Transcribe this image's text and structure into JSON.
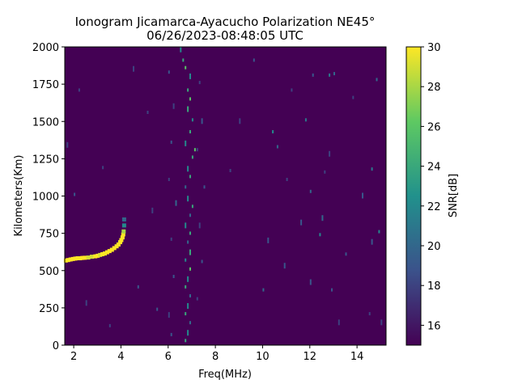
{
  "chart_data": {
    "type": "heatmap",
    "title": "Ionogram Jicamarca-Ayacucho Polarization NE45°",
    "subtitle": "06/26/2023-08:48:05 UTC",
    "xlabel": "Freq(MHz)",
    "ylabel": "Kilometers(Km)",
    "xlim": [
      1.62,
      15.23
    ],
    "ylim": [
      0,
      2000
    ],
    "xticks": [
      2,
      4,
      6,
      8,
      10,
      12,
      14
    ],
    "xtick_labels": [
      "2",
      "4",
      "6",
      "8",
      "10",
      "12",
      "14"
    ],
    "yticks": [
      0,
      250,
      500,
      750,
      1000,
      1250,
      1500,
      1750,
      2000
    ],
    "ytick_labels": [
      "0",
      "250",
      "500",
      "750",
      "1000",
      "1250",
      "1500",
      "1750",
      "2000"
    ],
    "colorbar": {
      "label": "SNR[dB]",
      "range": [
        15,
        30
      ],
      "ticks": [
        16,
        18,
        20,
        22,
        24,
        26,
        28,
        30
      ],
      "tick_labels": [
        "16",
        "18",
        "20",
        "22",
        "24",
        "26",
        "28",
        "30"
      ],
      "colormap": "viridis",
      "background": "#440154"
    },
    "trace_points": [
      [
        1.65,
        565,
        30
      ],
      [
        1.75,
        568,
        30
      ],
      [
        1.85,
        572,
        30
      ],
      [
        1.95,
        575,
        30
      ],
      [
        2.05,
        578,
        30
      ],
      [
        2.15,
        580,
        30
      ],
      [
        2.25,
        580,
        30
      ],
      [
        2.35,
        582,
        30
      ],
      [
        2.45,
        583,
        30
      ],
      [
        2.6,
        585,
        29
      ],
      [
        2.75,
        590,
        29
      ],
      [
        2.9,
        593,
        30
      ],
      [
        3.0,
        597,
        30
      ],
      [
        3.1,
        602,
        29
      ],
      [
        3.2,
        607,
        30
      ],
      [
        3.3,
        612,
        30
      ],
      [
        3.4,
        620,
        30
      ],
      [
        3.5,
        628,
        30
      ],
      [
        3.6,
        637,
        30
      ],
      [
        3.7,
        648,
        30
      ],
      [
        3.8,
        660,
        30
      ],
      [
        3.88,
        672,
        30
      ],
      [
        3.95,
        688,
        30
      ],
      [
        4.0,
        702,
        30
      ],
      [
        4.05,
        720,
        30
      ],
      [
        4.08,
        740,
        30
      ],
      [
        4.1,
        760,
        28
      ],
      [
        4.12,
        800,
        22
      ],
      [
        4.12,
        840,
        20
      ]
    ],
    "noise_points": [
      [
        6.5,
        1980,
        22
      ],
      [
        6.6,
        1900,
        24
      ],
      [
        6.7,
        1850,
        26
      ],
      [
        6.9,
        1800,
        22
      ],
      [
        6.8,
        1700,
        24
      ],
      [
        6.9,
        1640,
        26
      ],
      [
        6.8,
        1580,
        24
      ],
      [
        7.0,
        1500,
        22
      ],
      [
        6.9,
        1420,
        24
      ],
      [
        6.7,
        1350,
        22
      ],
      [
        7.1,
        1300,
        26
      ],
      [
        7.0,
        1250,
        24
      ],
      [
        6.8,
        1180,
        22
      ],
      [
        6.9,
        1120,
        24
      ],
      [
        6.7,
        1050,
        20
      ],
      [
        6.8,
        980,
        22
      ],
      [
        7.0,
        920,
        24
      ],
      [
        6.9,
        860,
        20
      ],
      [
        6.7,
        800,
        22
      ],
      [
        6.9,
        740,
        24
      ],
      [
        6.8,
        680,
        20
      ],
      [
        6.9,
        620,
        24
      ],
      [
        6.7,
        560,
        22
      ],
      [
        6.9,
        500,
        26
      ],
      [
        6.8,
        440,
        22
      ],
      [
        6.7,
        380,
        24
      ],
      [
        6.9,
        320,
        20
      ],
      [
        6.8,
        260,
        22
      ],
      [
        6.7,
        200,
        24
      ],
      [
        6.9,
        140,
        20
      ],
      [
        6.8,
        80,
        22
      ],
      [
        6.7,
        20,
        24
      ],
      [
        6.0,
        1820,
        19
      ],
      [
        6.2,
        1600,
        18
      ],
      [
        6.1,
        1350,
        19
      ],
      [
        6.0,
        1100,
        18
      ],
      [
        6.3,
        950,
        20
      ],
      [
        6.1,
        700,
        18
      ],
      [
        6.2,
        450,
        19
      ],
      [
        6.0,
        200,
        18
      ],
      [
        6.1,
        60,
        19
      ],
      [
        7.3,
        1750,
        18
      ],
      [
        7.4,
        1500,
        19
      ],
      [
        7.2,
        1300,
        18
      ],
      [
        7.5,
        1050,
        19
      ],
      [
        7.3,
        800,
        18
      ],
      [
        7.4,
        550,
        19
      ],
      [
        7.2,
        300,
        18
      ],
      [
        1.7,
        1340,
        18
      ],
      [
        2.0,
        1000,
        19
      ],
      [
        2.2,
        1700,
        18
      ],
      [
        2.5,
        280,
        18
      ],
      [
        3.2,
        1180,
        18
      ],
      [
        3.5,
        120,
        18
      ],
      [
        4.5,
        1850,
        18
      ],
      [
        4.7,
        380,
        19
      ],
      [
        5.1,
        1550,
        18
      ],
      [
        5.3,
        900,
        18
      ],
      [
        5.5,
        230,
        19
      ],
      [
        8.6,
        1160,
        18
      ],
      [
        9.0,
        1500,
        18
      ],
      [
        9.6,
        1900,
        19
      ],
      [
        10.0,
        360,
        20
      ],
      [
        10.2,
        700,
        19
      ],
      [
        10.4,
        1420,
        22
      ],
      [
        10.6,
        1320,
        20
      ],
      [
        10.9,
        530,
        19
      ],
      [
        11.0,
        1100,
        18
      ],
      [
        11.2,
        1700,
        18
      ],
      [
        11.6,
        820,
        19
      ],
      [
        11.8,
        1500,
        21
      ],
      [
        12.0,
        1020,
        20
      ],
      [
        12.0,
        420,
        19
      ],
      [
        12.1,
        1800,
        19
      ],
      [
        12.4,
        730,
        22
      ],
      [
        12.5,
        850,
        20
      ],
      [
        12.6,
        1150,
        18
      ],
      [
        12.8,
        1800,
        21
      ],
      [
        12.8,
        1280,
        18
      ],
      [
        12.9,
        360,
        19
      ],
      [
        13.0,
        1810,
        20
      ],
      [
        13.2,
        150,
        18
      ],
      [
        13.5,
        600,
        19
      ],
      [
        13.8,
        1650,
        18
      ],
      [
        14.2,
        1000,
        19
      ],
      [
        14.5,
        200,
        18
      ],
      [
        14.6,
        1170,
        21
      ],
      [
        14.6,
        690,
        19
      ],
      [
        14.8,
        1770,
        20
      ],
      [
        14.9,
        750,
        22
      ],
      [
        15.0,
        150,
        18
      ]
    ]
  }
}
